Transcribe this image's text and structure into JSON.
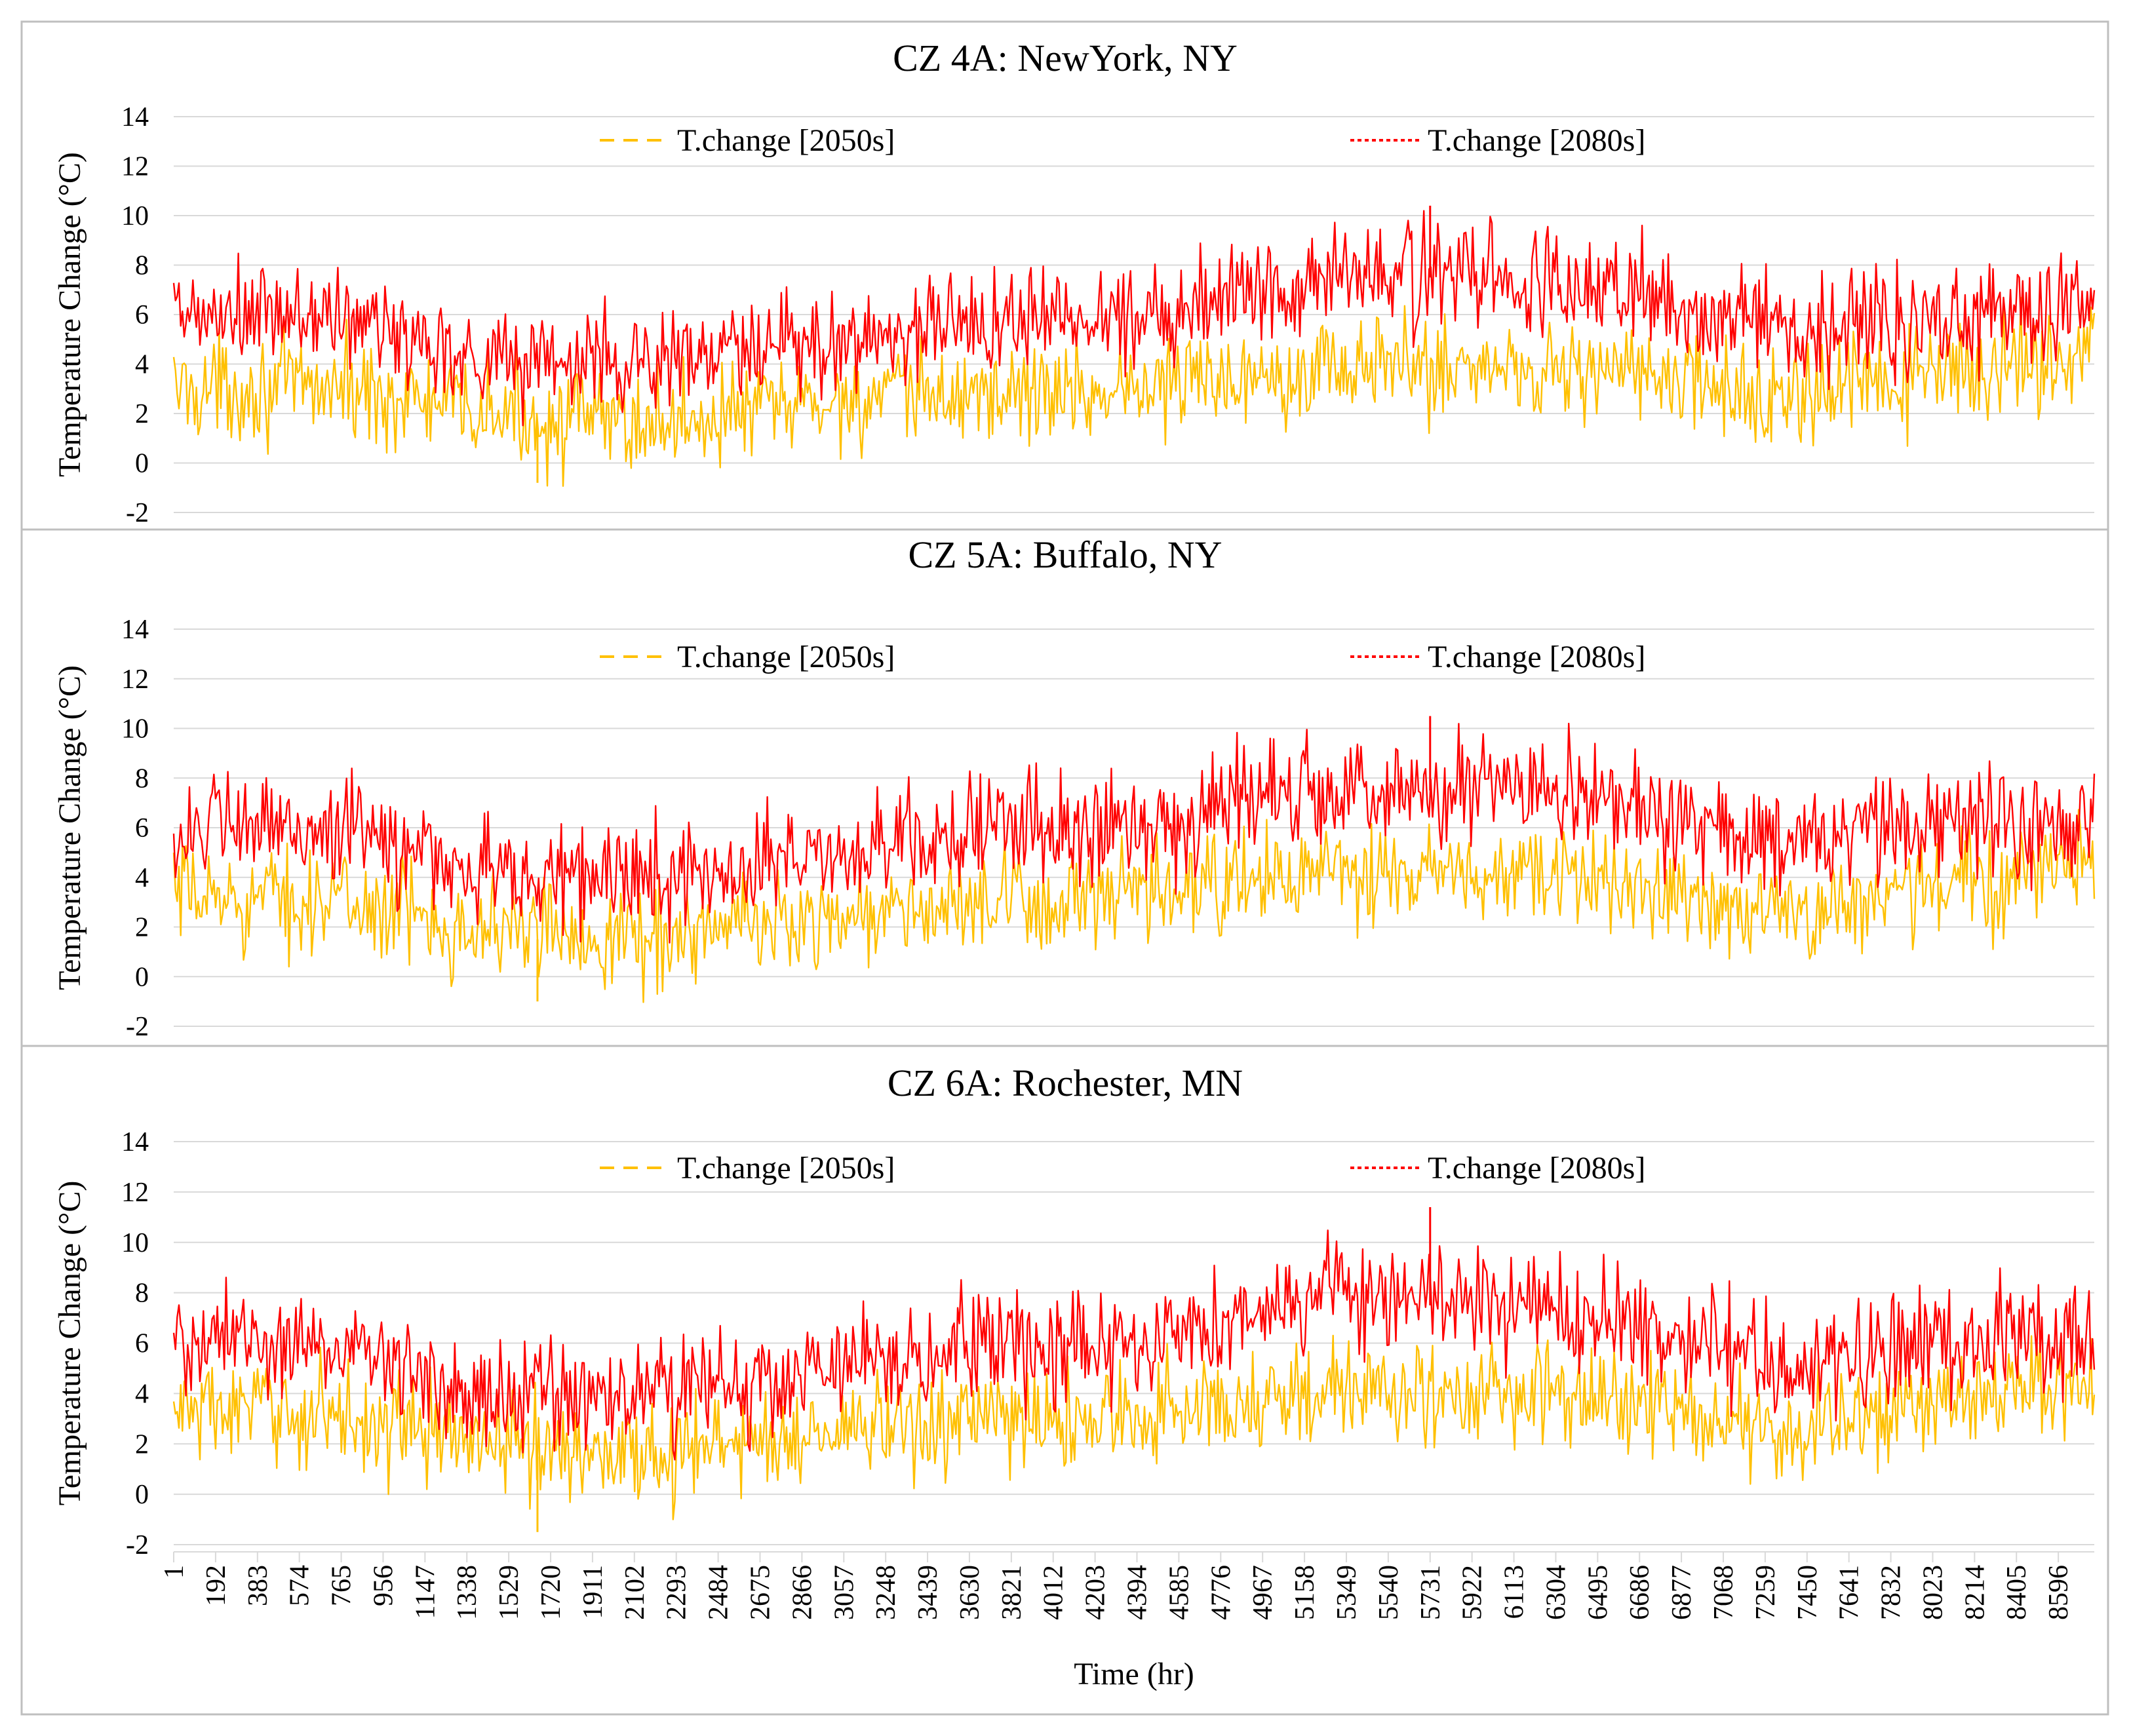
{
  "colors": {
    "series_2050s": "#FFC000",
    "series_2080s": "#FF0000",
    "grid": "#D9D9D9",
    "frame": "#BFBFBF"
  },
  "shared": {
    "ylabel": "Temperature Change (°C)",
    "xlabel": "Time (hr)",
    "yticks": [
      -2,
      0,
      2,
      4,
      6,
      8,
      10,
      12,
      14
    ],
    "ylim": [
      -2,
      14
    ],
    "xlim": [
      1,
      8760
    ],
    "xticks": [
      1,
      192,
      383,
      574,
      765,
      956,
      1147,
      1338,
      1529,
      1720,
      1911,
      2102,
      2293,
      2484,
      2675,
      2866,
      3057,
      3248,
      3439,
      3630,
      3821,
      4012,
      4203,
      4394,
      4585,
      4776,
      4967,
      5158,
      5349,
      5540,
      5731,
      5922,
      6113,
      6304,
      6495,
      6686,
      6877,
      7068,
      7259,
      7450,
      7641,
      7832,
      8023,
      8214,
      8405,
      8596
    ],
    "legend": [
      "T.change [2050s]",
      "T.change [2080s]"
    ]
  },
  "chart_data": [
    {
      "type": "line",
      "title": "CZ 4A: NewYork, NY",
      "xlabel": "Time (hr)",
      "ylabel": "Temperature Change (°C)",
      "ylim": [
        -2,
        14
      ],
      "series": [
        {
          "name": "T.change [2050s]",
          "style": "dashed",
          "color": "#FFC000",
          "hours_mid": [
            1,
            730,
            1460,
            2190,
            2920,
            3650,
            4380,
            5110,
            5840,
            6570,
            7300,
            8030,
            8760
          ],
          "mean": [
            3.0,
            3.1,
            1.9,
            1.6,
            2.4,
            2.8,
            3.0,
            3.9,
            3.9,
            3.8,
            2.5,
            3.5,
            4.5
          ],
          "spread": 1.5
        },
        {
          "name": "T.change [2080s]",
          "style": "dotted",
          "color": "#FF0000",
          "hours_mid": [
            1,
            730,
            1460,
            2190,
            2920,
            3650,
            4380,
            5110,
            5840,
            6570,
            7300,
            8030,
            8760
          ],
          "mean": [
            5.8,
            5.9,
            4.2,
            4.1,
            4.7,
            5.8,
            6.0,
            7.5,
            7.6,
            7.0,
            5.4,
            6.0,
            6.2
          ],
          "spread": 1.6
        }
      ],
      "peak_2080s": 10.4,
      "min_2050s": -0.8
    },
    {
      "type": "line",
      "title": "CZ 5A: Buffalo, NY",
      "xlabel": "Time (hr)",
      "ylabel": "Temperature Change (°C)",
      "ylim": [
        -2,
        14
      ],
      "series": [
        {
          "name": "T.change [2050s]",
          "style": "dashed",
          "color": "#FFC000",
          "hours_mid": [
            1,
            730,
            1460,
            2190,
            2920,
            3650,
            4380,
            5110,
            5840,
            6570,
            7300,
            8030,
            8760
          ],
          "mean": [
            3.2,
            3.1,
            1.9,
            1.6,
            2.4,
            2.8,
            3.1,
            4.1,
            4.0,
            3.9,
            2.5,
            3.6,
            4.6
          ],
          "spread": 1.5
        },
        {
          "name": "T.change [2080s]",
          "style": "dotted",
          "color": "#FF0000",
          "hours_mid": [
            1,
            730,
            1460,
            2190,
            2920,
            3650,
            4380,
            5110,
            5840,
            6570,
            7300,
            8030,
            8760
          ],
          "mean": [
            5.9,
            6.0,
            4.1,
            4.0,
            4.8,
            5.9,
            6.1,
            7.6,
            7.5,
            6.9,
            5.3,
            6.0,
            6.3
          ],
          "spread": 1.6
        }
      ],
      "peak_2080s": 10.5,
      "min_2050s": -1.0
    },
    {
      "type": "line",
      "title": "CZ 6A: Rochester, MN",
      "xlabel": "Time (hr)",
      "ylabel": "Temperature Change (°C)",
      "ylim": [
        -2,
        14
      ],
      "series": [
        {
          "name": "T.change [2050s]",
          "style": "dashed",
          "color": "#FFC000",
          "hours_mid": [
            1,
            730,
            1460,
            2190,
            2920,
            3650,
            4380,
            5110,
            5840,
            6570,
            7300,
            8030,
            8760
          ],
          "mean": [
            3.4,
            3.2,
            2.0,
            1.6,
            2.4,
            2.9,
            3.1,
            4.0,
            4.0,
            3.8,
            2.4,
            3.6,
            4.4
          ],
          "spread": 1.5
        },
        {
          "name": "T.change [2080s]",
          "style": "dotted",
          "color": "#FF0000",
          "hours_mid": [
            1,
            730,
            1460,
            2190,
            2920,
            3650,
            4380,
            5110,
            5840,
            6570,
            7300,
            8030,
            8760
          ],
          "mean": [
            6.0,
            6.0,
            4.0,
            3.9,
            4.7,
            5.8,
            6.1,
            7.7,
            7.6,
            7.0,
            5.2,
            6.1,
            6.3
          ],
          "spread": 1.6
        }
      ],
      "peak_2080s": 11.4,
      "min_2050s": -1.5
    }
  ]
}
